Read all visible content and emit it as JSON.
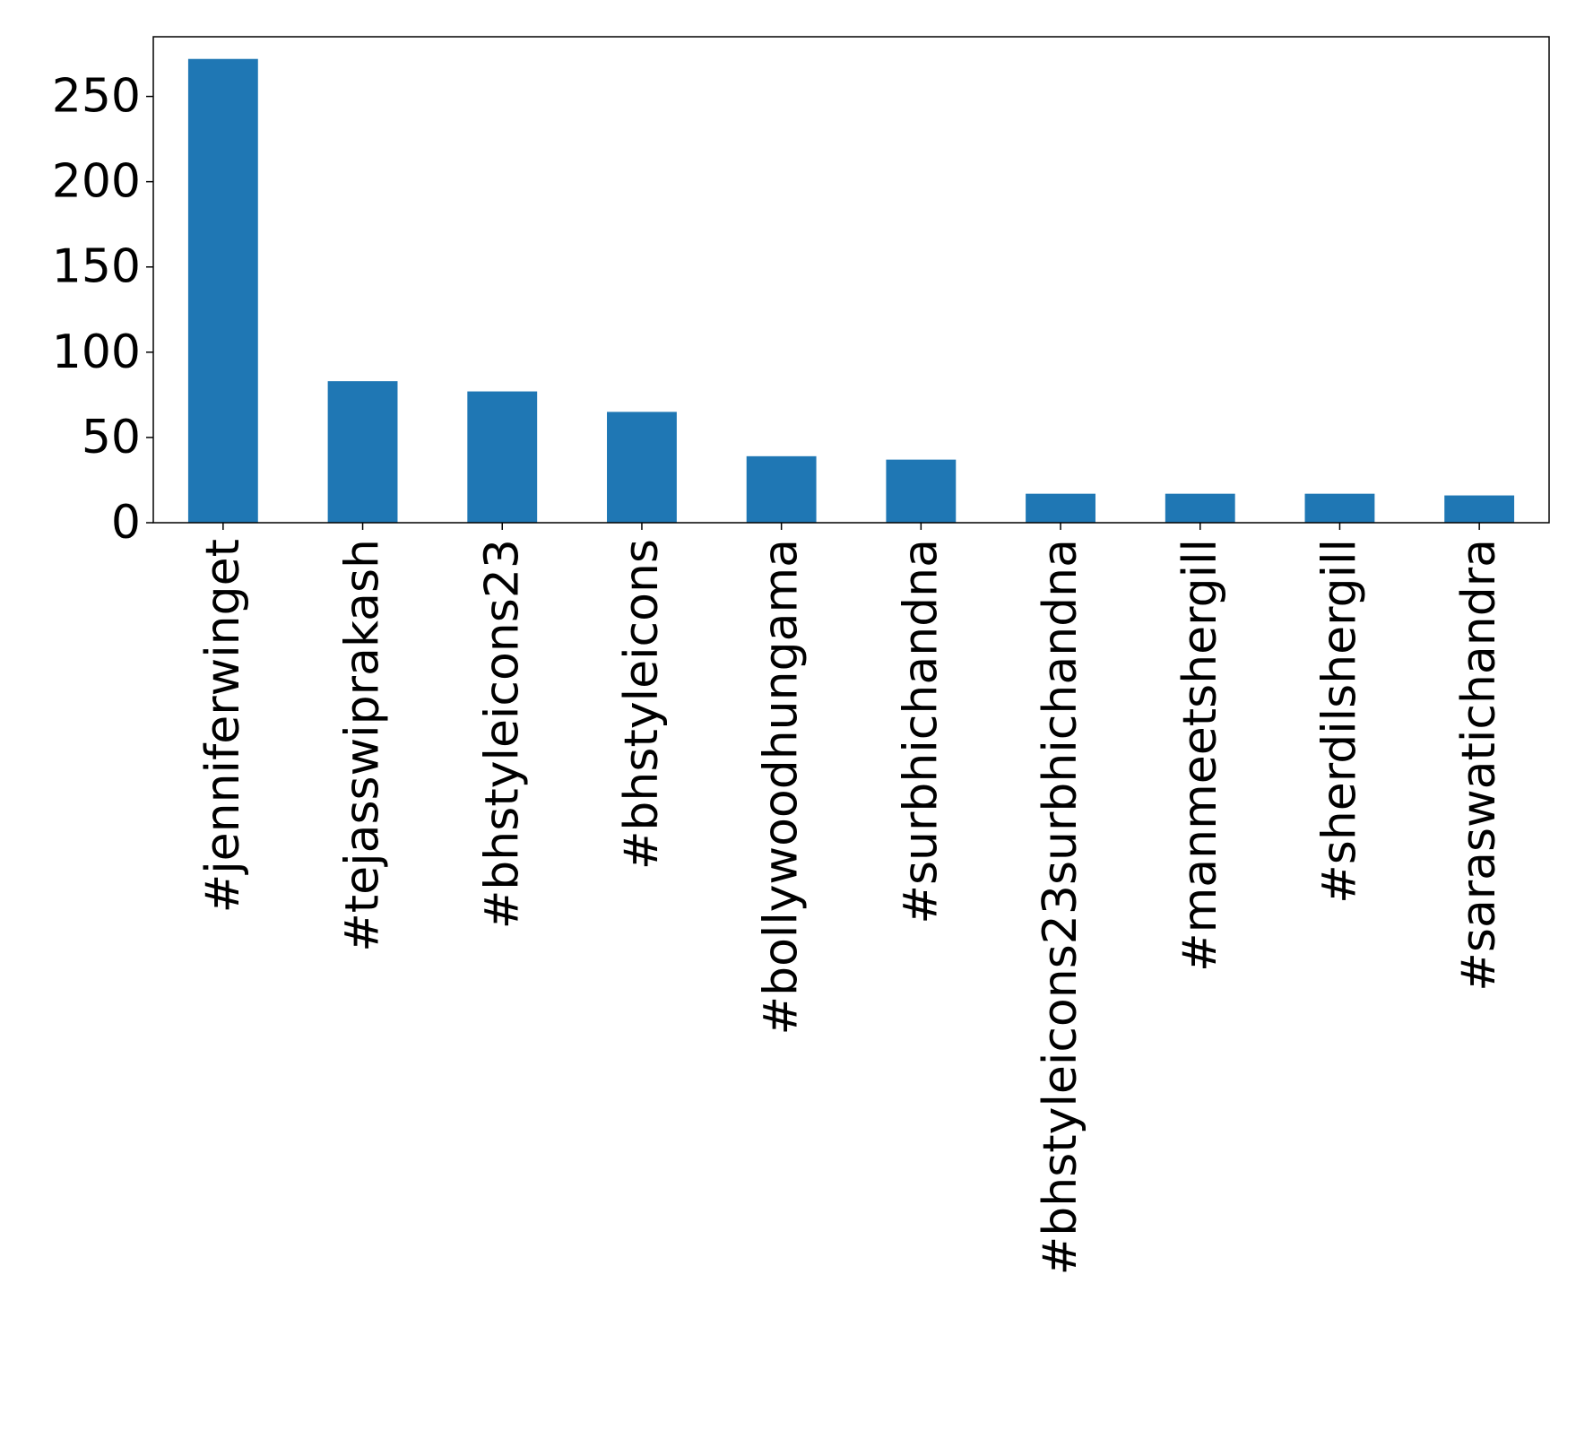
{
  "chart_data": {
    "type": "bar",
    "title": "",
    "xlabel": "",
    "ylabel": "",
    "categories": [
      "#jenniferwinget",
      "#tejasswiprakash",
      "#bhstyleicons23",
      "#bhstyleicons",
      "#bollywoodhungama",
      "#surbhichandna",
      "#bhstyleicons23surbhichandna",
      "#manmeetshergill",
      "#sherdilshergill",
      "#saraswatichandra"
    ],
    "values": [
      272,
      83,
      77,
      65,
      39,
      37,
      17,
      17,
      17,
      16
    ],
    "ylim": [
      0,
      285
    ],
    "yticks": [
      "0",
      "50",
      "100",
      "150",
      "200",
      "250"
    ],
    "ytick_values": [
      0,
      50,
      100,
      150,
      200,
      250
    ],
    "bar_color": "#1f77b4",
    "grid": false,
    "legend": "none"
  }
}
